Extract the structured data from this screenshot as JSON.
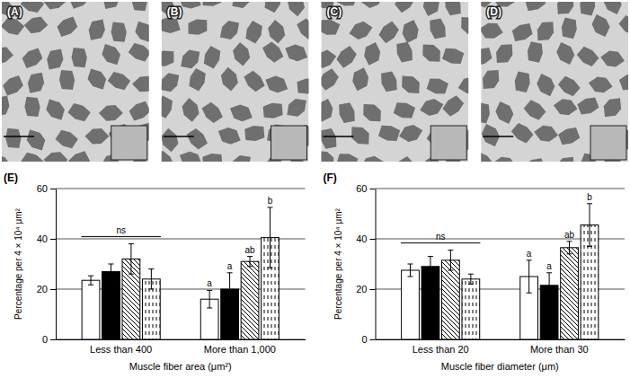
{
  "images": [
    {
      "label": "(A)"
    },
    {
      "label": "(B)"
    },
    {
      "label": "(C)"
    },
    {
      "label": "(D)"
    }
  ],
  "chart_data": [
    {
      "type": "bar",
      "panel": "(E)",
      "x_label": "Muscle fiber area (μm²)",
      "y_label": "Percentage per 4 × 10⁴ μm²",
      "categories": [
        "Less than 400",
        "More than 1,000"
      ],
      "annotations": [
        "ns",
        null
      ],
      "series": [
        {
          "color": "#ffffff",
          "values": [
            23.5,
            16
          ],
          "errors": [
            1.8,
            3.5
          ],
          "letters": [
            null,
            "a"
          ]
        },
        {
          "color": "#000000",
          "values": [
            27,
            20
          ],
          "errors": [
            3,
            6.5
          ],
          "letters": [
            null,
            "a"
          ]
        },
        {
          "color": "#ffffff",
          "values": [
            32,
            31
          ],
          "errors": [
            6,
            2
          ],
          "letters": [
            null,
            "ab"
          ]
        },
        {
          "color": "#ffffff",
          "values": [
            24,
            40.5
          ],
          "errors": [
            4,
            12
          ],
          "letters": [
            null,
            "b"
          ]
        }
      ],
      "ylim": [
        0,
        60
      ],
      "yticks": [
        0,
        20,
        40,
        60
      ],
      "grid": true
    },
    {
      "type": "bar",
      "panel": "(F)",
      "x_label": "Muscle fiber diameter (μm)",
      "y_label": "Percentage per 4 × 10⁴ μm²",
      "categories": [
        "Less than 20",
        "More than 30"
      ],
      "annotations": [
        "ns",
        null
      ],
      "series": [
        {
          "color": "#ffffff",
          "values": [
            27.5,
            25
          ],
          "errors": [
            2.5,
            6.5
          ],
          "letters": [
            null,
            "a"
          ]
        },
        {
          "color": "#000000",
          "values": [
            29,
            21.5
          ],
          "errors": [
            4,
            5
          ],
          "letters": [
            null,
            "a"
          ]
        },
        {
          "color": "#ffffff",
          "values": [
            31.5,
            36.5
          ],
          "errors": [
            4,
            2.5
          ],
          "letters": [
            null,
            "ab"
          ]
        },
        {
          "color": "#ffffff",
          "values": [
            24,
            45.5
          ],
          "errors": [
            2,
            8.5
          ],
          "letters": [
            null,
            "b"
          ]
        }
      ],
      "ylim": [
        0,
        60
      ],
      "yticks": [
        0,
        20,
        40,
        60
      ],
      "grid": true
    }
  ]
}
